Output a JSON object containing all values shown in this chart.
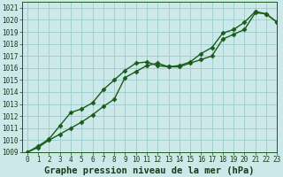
{
  "title": "Graphe pression niveau de la mer (hPa)",
  "bg_color": "#cce8e8",
  "line_color": "#1a5c1a",
  "grid_color": "#99cccc",
  "xlim": [
    -0.5,
    23
  ],
  "ylim": [
    1009,
    1021.5
  ],
  "xticks": [
    0,
    1,
    2,
    3,
    4,
    5,
    6,
    7,
    8,
    9,
    10,
    11,
    12,
    13,
    14,
    15,
    16,
    17,
    18,
    19,
    20,
    21,
    22,
    23
  ],
  "yticks": [
    1009,
    1010,
    1011,
    1012,
    1013,
    1014,
    1015,
    1016,
    1017,
    1018,
    1019,
    1020,
    1021
  ],
  "line1_x": [
    0,
    1,
    2,
    3,
    4,
    5,
    6,
    7,
    8,
    9,
    10,
    11,
    12,
    13,
    14,
    15,
    16,
    17,
    18,
    19,
    20,
    21,
    22,
    23
  ],
  "line1_y": [
    1009.0,
    1009.5,
    1010.1,
    1011.2,
    1012.3,
    1012.6,
    1013.1,
    1014.2,
    1015.0,
    1015.8,
    1016.4,
    1016.5,
    1016.2,
    1016.1,
    1016.2,
    1016.5,
    1017.2,
    1017.7,
    1018.9,
    1019.2,
    1019.8,
    1020.7,
    1020.5,
    1019.8
  ],
  "line2_x": [
    0,
    1,
    2,
    3,
    4,
    5,
    6,
    7,
    8,
    9,
    10,
    11,
    12,
    13,
    14,
    15,
    16,
    17,
    18,
    19,
    20,
    21,
    22,
    23
  ],
  "line2_y": [
    1009.0,
    1009.4,
    1010.0,
    1010.5,
    1011.0,
    1011.5,
    1012.1,
    1012.8,
    1013.4,
    1015.2,
    1015.7,
    1016.2,
    1016.4,
    1016.1,
    1016.1,
    1016.4,
    1016.7,
    1017.0,
    1018.4,
    1018.8,
    1019.2,
    1020.6,
    1020.5,
    1019.8
  ],
  "marker": "D",
  "markersize": 2.5,
  "linewidth": 1.0,
  "title_fontsize": 7.5,
  "tick_fontsize": 5.5,
  "bottom_color": "#1a5c1a",
  "label_color": "#1a3a1a"
}
